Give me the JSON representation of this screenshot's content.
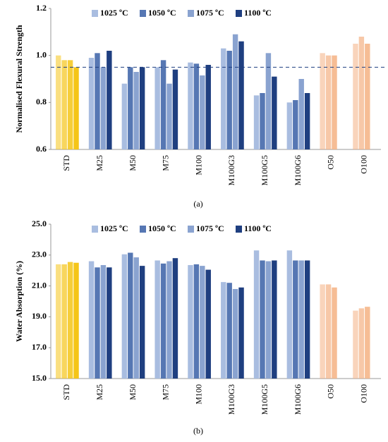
{
  "chart_data": [
    {
      "type": "bar",
      "caption": "(a)",
      "y_label": "Normalised Flexural Strength",
      "categories": [
        "STD",
        "M25",
        "M50",
        "M75",
        "M100",
        "M100G3",
        "M100G5",
        "M100G6",
        "O50",
        "O100"
      ],
      "category_colors": [
        "#f5c518",
        null,
        null,
        null,
        null,
        null,
        null,
        null,
        "#f4b183",
        "#f4b183"
      ],
      "series": [
        {
          "name": "1025 ºC",
          "color": "#a9bde0",
          "values": [
            1.0,
            0.99,
            0.88,
            0.95,
            0.97,
            1.03,
            0.83,
            0.8,
            1.01,
            1.05
          ]
        },
        {
          "name": "1050 ºC",
          "color": "#5677b3",
          "values": [
            0.98,
            1.01,
            0.95,
            0.98,
            0.965,
            1.02,
            0.84,
            0.81,
            1.0,
            1.08
          ]
        },
        {
          "name": "1075 ºC",
          "color": "#8aa3d0",
          "values": [
            0.98,
            0.95,
            0.93,
            0.88,
            0.915,
            1.09,
            1.01,
            0.9,
            1.0,
            1.05
          ]
        },
        {
          "name": "1100 ºC",
          "color": "#1f3f80",
          "values": [
            0.95,
            1.02,
            0.95,
            0.94,
            0.96,
            1.06,
            0.91,
            0.84,
            null,
            null
          ]
        }
      ],
      "reference_line": 0.95,
      "ylim": [
        0.6,
        1.2
      ],
      "yticks": [
        0.6,
        0.8,
        {
          "value": 1,
          "label": "1.0"
        },
        1.2
      ]
    },
    {
      "type": "bar",
      "caption": "(b)",
      "y_label": "Water Absorption (%)",
      "categories": [
        "STD",
        "M25",
        "M50",
        "M75",
        "M100",
        "M100G3",
        "M100G5",
        "M100G6",
        "O50",
        "O100"
      ],
      "category_colors": [
        "#f5c518",
        null,
        null,
        null,
        null,
        null,
        null,
        null,
        "#f4b183",
        "#f4b183"
      ],
      "series": [
        {
          "name": "1025 ºC",
          "color": "#a9bde0",
          "values": [
            22.4,
            22.6,
            23.05,
            22.65,
            22.35,
            21.25,
            23.3,
            23.3,
            21.1,
            19.4
          ]
        },
        {
          "name": "1050 ºC",
          "color": "#5677b3",
          "values": [
            22.4,
            22.2,
            23.15,
            22.45,
            22.4,
            21.2,
            22.65,
            22.65,
            21.1,
            19.55
          ]
        },
        {
          "name": "1075 ºC",
          "color": "#8aa3d0",
          "values": [
            22.55,
            22.35,
            22.85,
            22.6,
            22.3,
            20.8,
            22.6,
            22.65,
            20.9,
            19.65
          ]
        },
        {
          "name": "1100 ºC",
          "color": "#1f3f80",
          "values": [
            22.5,
            22.2,
            22.3,
            22.8,
            22.05,
            20.9,
            22.65,
            22.65,
            null,
            null
          ]
        }
      ],
      "ylim": [
        15,
        25
      ],
      "yticks": [
        {
          "value": 15,
          "label": "15.0"
        },
        {
          "value": 17,
          "label": "17.0"
        },
        {
          "value": 19,
          "label": "19.0"
        },
        {
          "value": 21,
          "label": "21.0"
        },
        {
          "value": 23,
          "label": "23.0"
        },
        {
          "value": 25,
          "label": "25.0"
        }
      ]
    }
  ]
}
